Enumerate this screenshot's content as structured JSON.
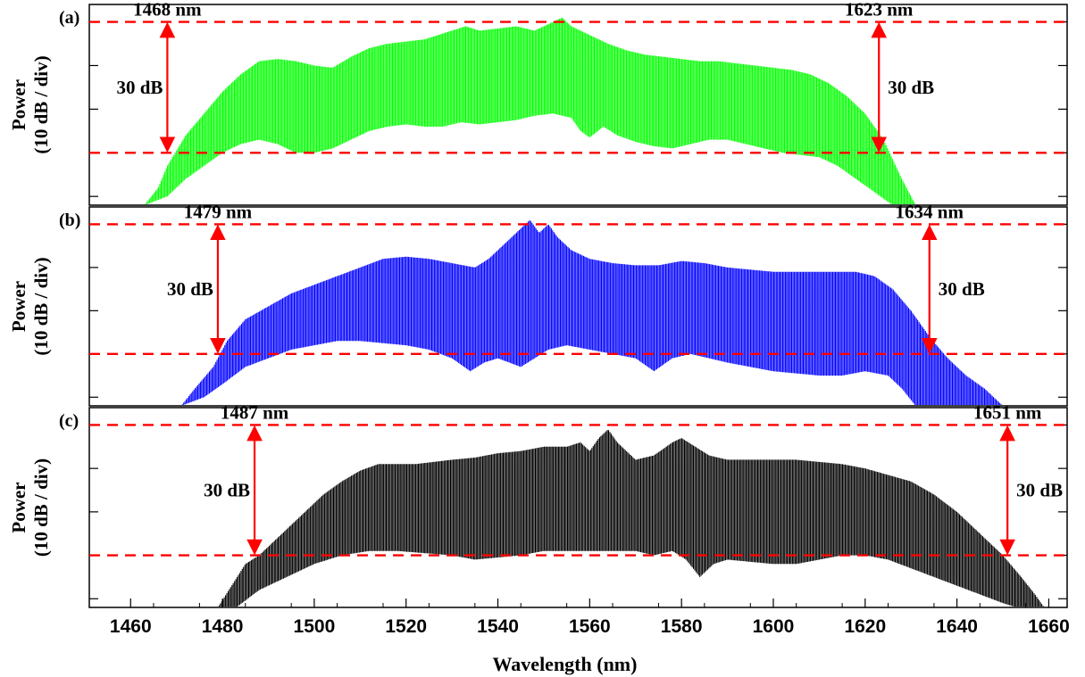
{
  "chart_data": {
    "type": "area",
    "xlabel": "Wavelength (nm)",
    "xlim": [
      1451,
      1664
    ],
    "xticks": [
      1460,
      1480,
      1500,
      1520,
      1540,
      1560,
      1580,
      1600,
      1620,
      1640,
      1660
    ],
    "marker_delta_label": "30 dB",
    "panels": [
      {
        "label": "(a)",
        "ylabel_line1": "Power",
        "ylabel_line2": "(10 dB / div)",
        "color": "#00ff00",
        "ylim": [
          -42,
          4
        ],
        "reference_levels": [
          0,
          -30
        ],
        "left_marker": {
          "wavelength": 1468,
          "text": "1468 nm"
        },
        "right_marker": {
          "wavelength": 1623,
          "text": "1623 nm"
        },
        "upper_envelope": [
          [
            1463,
            -42
          ],
          [
            1466,
            -38
          ],
          [
            1468,
            -33
          ],
          [
            1472,
            -26
          ],
          [
            1476,
            -21
          ],
          [
            1480,
            -16
          ],
          [
            1484,
            -12
          ],
          [
            1488,
            -9
          ],
          [
            1492,
            -8.5
          ],
          [
            1496,
            -9
          ],
          [
            1500,
            -10
          ],
          [
            1504,
            -10.5
          ],
          [
            1508,
            -8
          ],
          [
            1512,
            -6
          ],
          [
            1516,
            -5
          ],
          [
            1520,
            -4.5
          ],
          [
            1524,
            -4
          ],
          [
            1527,
            -3
          ],
          [
            1530,
            -2
          ],
          [
            1533,
            -1
          ],
          [
            1536,
            -2
          ],
          [
            1540,
            -1.5
          ],
          [
            1544,
            -1
          ],
          [
            1548,
            -2
          ],
          [
            1552,
            0
          ],
          [
            1554,
            1
          ],
          [
            1556,
            -1
          ],
          [
            1560,
            -3
          ],
          [
            1564,
            -5
          ],
          [
            1568,
            -6.5
          ],
          [
            1572,
            -7.5
          ],
          [
            1576,
            -8
          ],
          [
            1580,
            -8.5
          ],
          [
            1584,
            -9
          ],
          [
            1588,
            -9
          ],
          [
            1592,
            -9.5
          ],
          [
            1596,
            -10
          ],
          [
            1600,
            -10.5
          ],
          [
            1604,
            -11
          ],
          [
            1608,
            -12
          ],
          [
            1612,
            -14
          ],
          [
            1616,
            -17
          ],
          [
            1620,
            -21
          ],
          [
            1624,
            -27
          ],
          [
            1628,
            -36
          ],
          [
            1631,
            -42
          ]
        ],
        "lower_envelope": [
          [
            1463,
            -42
          ],
          [
            1468,
            -40
          ],
          [
            1472,
            -36
          ],
          [
            1476,
            -33
          ],
          [
            1480,
            -30
          ],
          [
            1484,
            -28
          ],
          [
            1488,
            -27
          ],
          [
            1492,
            -28
          ],
          [
            1496,
            -30
          ],
          [
            1500,
            -30
          ],
          [
            1504,
            -29
          ],
          [
            1508,
            -27
          ],
          [
            1512,
            -25
          ],
          [
            1516,
            -24
          ],
          [
            1520,
            -23.5
          ],
          [
            1524,
            -24
          ],
          [
            1528,
            -24
          ],
          [
            1532,
            -23
          ],
          [
            1536,
            -23.5
          ],
          [
            1540,
            -23
          ],
          [
            1544,
            -22.5
          ],
          [
            1548,
            -21.5
          ],
          [
            1552,
            -21
          ],
          [
            1556,
            -22
          ],
          [
            1558,
            -25
          ],
          [
            1560,
            -26.5
          ],
          [
            1563,
            -24
          ],
          [
            1566,
            -26
          ],
          [
            1570,
            -27.5
          ],
          [
            1574,
            -28.5
          ],
          [
            1578,
            -29
          ],
          [
            1582,
            -28
          ],
          [
            1586,
            -27
          ],
          [
            1590,
            -27
          ],
          [
            1594,
            -28
          ],
          [
            1598,
            -29
          ],
          [
            1602,
            -30
          ],
          [
            1606,
            -30.5
          ],
          [
            1610,
            -31
          ],
          [
            1614,
            -33
          ],
          [
            1618,
            -36
          ],
          [
            1622,
            -39
          ],
          [
            1626,
            -42
          ]
        ]
      },
      {
        "label": "(b)",
        "ylabel_line1": "Power",
        "ylabel_line2": "(10 dB / div)",
        "color": "#0000ff",
        "ylim": [
          -42,
          4
        ],
        "reference_levels": [
          0,
          -30
        ],
        "left_marker": {
          "wavelength": 1479,
          "text": "1479 nm"
        },
        "right_marker": {
          "wavelength": 1634,
          "text": "1634 nm"
        },
        "upper_envelope": [
          [
            1471,
            -42
          ],
          [
            1474,
            -38
          ],
          [
            1478,
            -33
          ],
          [
            1481,
            -27
          ],
          [
            1485,
            -22
          ],
          [
            1490,
            -19
          ],
          [
            1495,
            -16
          ],
          [
            1500,
            -14
          ],
          [
            1505,
            -12
          ],
          [
            1510,
            -10
          ],
          [
            1515,
            -8
          ],
          [
            1520,
            -7.5
          ],
          [
            1525,
            -8
          ],
          [
            1530,
            -9
          ],
          [
            1535,
            -10
          ],
          [
            1538,
            -8
          ],
          [
            1542,
            -4
          ],
          [
            1545,
            -1
          ],
          [
            1547,
            1
          ],
          [
            1549,
            -2
          ],
          [
            1551,
            0
          ],
          [
            1553,
            -3
          ],
          [
            1556,
            -6
          ],
          [
            1560,
            -8
          ],
          [
            1565,
            -9
          ],
          [
            1570,
            -9.5
          ],
          [
            1575,
            -9.5
          ],
          [
            1580,
            -8.5
          ],
          [
            1585,
            -9
          ],
          [
            1590,
            -10
          ],
          [
            1595,
            -10.5
          ],
          [
            1600,
            -11
          ],
          [
            1605,
            -11
          ],
          [
            1610,
            -11
          ],
          [
            1615,
            -11
          ],
          [
            1618,
            -11
          ],
          [
            1622,
            -12
          ],
          [
            1626,
            -15
          ],
          [
            1630,
            -20
          ],
          [
            1634,
            -26
          ],
          [
            1638,
            -31
          ],
          [
            1642,
            -35
          ],
          [
            1646,
            -38
          ],
          [
            1650,
            -42
          ]
        ],
        "lower_envelope": [
          [
            1471,
            -42
          ],
          [
            1476,
            -40
          ],
          [
            1480,
            -37
          ],
          [
            1485,
            -33
          ],
          [
            1490,
            -31
          ],
          [
            1495,
            -29
          ],
          [
            1500,
            -28
          ],
          [
            1505,
            -27
          ],
          [
            1510,
            -27
          ],
          [
            1515,
            -27.5
          ],
          [
            1520,
            -28
          ],
          [
            1525,
            -29
          ],
          [
            1530,
            -31
          ],
          [
            1534,
            -34
          ],
          [
            1537,
            -32
          ],
          [
            1540,
            -31
          ],
          [
            1545,
            -33
          ],
          [
            1548,
            -31
          ],
          [
            1551,
            -29
          ],
          [
            1555,
            -28
          ],
          [
            1560,
            -29
          ],
          [
            1565,
            -30
          ],
          [
            1570,
            -31
          ],
          [
            1574,
            -34
          ],
          [
            1578,
            -31
          ],
          [
            1582,
            -30
          ],
          [
            1586,
            -31
          ],
          [
            1590,
            -32
          ],
          [
            1595,
            -33
          ],
          [
            1600,
            -34
          ],
          [
            1605,
            -34.5
          ],
          [
            1610,
            -35
          ],
          [
            1615,
            -35
          ],
          [
            1620,
            -34
          ],
          [
            1625,
            -35
          ],
          [
            1628,
            -38
          ],
          [
            1631,
            -42
          ]
        ]
      },
      {
        "label": "(c)",
        "ylabel_line1": "Power",
        "ylabel_line2": "(10 dB / div)",
        "color": "#000000",
        "ylim": [
          -42,
          4
        ],
        "reference_levels": [
          0,
          -30
        ],
        "left_marker": {
          "wavelength": 1487,
          "text": "1487 nm"
        },
        "right_marker": {
          "wavelength": 1651,
          "text": "1651 nm"
        },
        "upper_envelope": [
          [
            1479,
            -42
          ],
          [
            1482,
            -37
          ],
          [
            1485,
            -32
          ],
          [
            1488,
            -30
          ],
          [
            1490,
            -28
          ],
          [
            1494,
            -24
          ],
          [
            1498,
            -20
          ],
          [
            1502,
            -16
          ],
          [
            1506,
            -13
          ],
          [
            1510,
            -10.5
          ],
          [
            1514,
            -9
          ],
          [
            1518,
            -9
          ],
          [
            1522,
            -9
          ],
          [
            1526,
            -8.5
          ],
          [
            1530,
            -8
          ],
          [
            1535,
            -7.5
          ],
          [
            1540,
            -6.5
          ],
          [
            1545,
            -6
          ],
          [
            1550,
            -5
          ],
          [
            1555,
            -5
          ],
          [
            1558,
            -4
          ],
          [
            1560,
            -6
          ],
          [
            1562,
            -3
          ],
          [
            1564,
            -1
          ],
          [
            1566,
            -4
          ],
          [
            1570,
            -8
          ],
          [
            1574,
            -7
          ],
          [
            1578,
            -4
          ],
          [
            1580,
            -3
          ],
          [
            1583,
            -5
          ],
          [
            1586,
            -7
          ],
          [
            1590,
            -8
          ],
          [
            1595,
            -8
          ],
          [
            1600,
            -8
          ],
          [
            1605,
            -8
          ],
          [
            1610,
            -8.5
          ],
          [
            1615,
            -9
          ],
          [
            1620,
            -10
          ],
          [
            1625,
            -11.5
          ],
          [
            1630,
            -13
          ],
          [
            1635,
            -16
          ],
          [
            1640,
            -20
          ],
          [
            1645,
            -25
          ],
          [
            1650,
            -30
          ],
          [
            1654,
            -35
          ],
          [
            1657,
            -39
          ],
          [
            1659,
            -42
          ]
        ],
        "lower_envelope": [
          [
            1483,
            -42
          ],
          [
            1488,
            -38
          ],
          [
            1494,
            -35
          ],
          [
            1500,
            -32
          ],
          [
            1506,
            -30
          ],
          [
            1512,
            -29
          ],
          [
            1518,
            -29
          ],
          [
            1524,
            -29.5
          ],
          [
            1530,
            -30
          ],
          [
            1535,
            -31
          ],
          [
            1540,
            -30.5
          ],
          [
            1545,
            -30
          ],
          [
            1550,
            -29
          ],
          [
            1555,
            -29
          ],
          [
            1560,
            -29
          ],
          [
            1565,
            -29
          ],
          [
            1570,
            -29
          ],
          [
            1574,
            -30
          ],
          [
            1578,
            -29
          ],
          [
            1581,
            -31
          ],
          [
            1584,
            -35
          ],
          [
            1587,
            -32
          ],
          [
            1590,
            -31
          ],
          [
            1595,
            -31.5
          ],
          [
            1600,
            -32
          ],
          [
            1605,
            -32
          ],
          [
            1610,
            -31
          ],
          [
            1615,
            -30
          ],
          [
            1620,
            -30
          ],
          [
            1625,
            -31
          ],
          [
            1630,
            -33
          ],
          [
            1635,
            -35
          ],
          [
            1640,
            -37
          ],
          [
            1645,
            -39
          ],
          [
            1650,
            -41
          ],
          [
            1653,
            -42
          ]
        ]
      }
    ]
  }
}
